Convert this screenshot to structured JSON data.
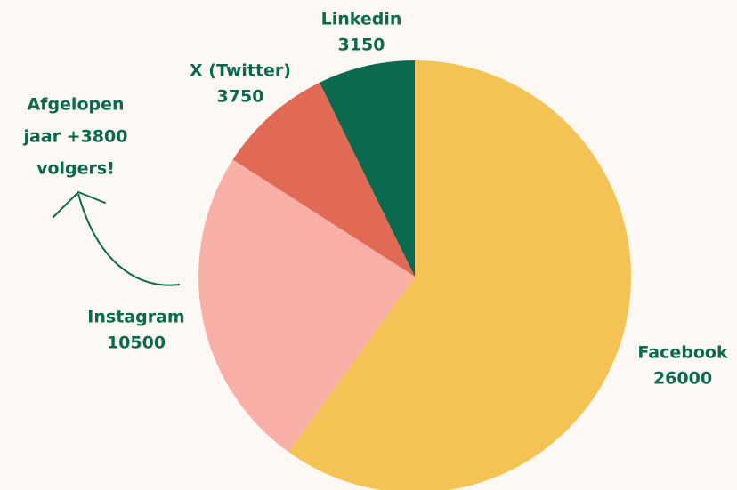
{
  "chart_data": {
    "type": "pie",
    "categories": [
      "Facebook",
      "Instagram",
      "X (Twitter)",
      "Linkedin"
    ],
    "values": [
      26000,
      10500,
      3750,
      3150
    ],
    "colors": [
      "#F5C355",
      "#F8AFA6",
      "#E06A55",
      "#0B6A4E"
    ],
    "annotation": [
      "Afgelopen",
      "jaar +3800",
      "volgers!"
    ]
  }
}
